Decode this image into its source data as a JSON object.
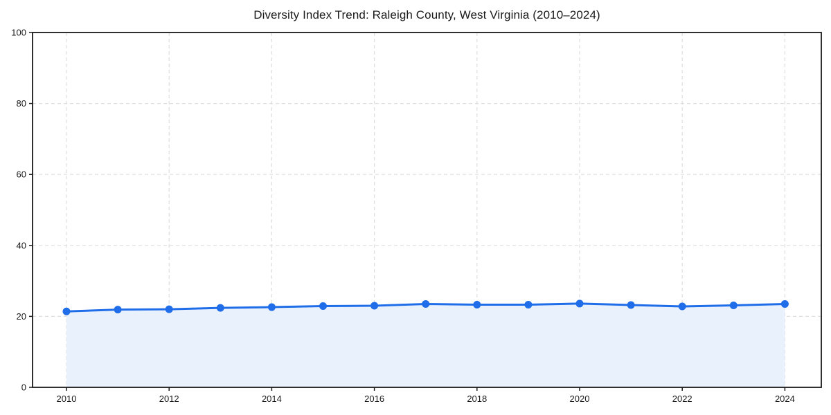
{
  "chart_data": {
    "type": "line",
    "title": "Diversity Index Trend: Raleigh County, West Virginia (2010–2024)",
    "x": [
      2010,
      2011,
      2012,
      2013,
      2014,
      2015,
      2016,
      2017,
      2018,
      2019,
      2020,
      2021,
      2022,
      2023,
      2024
    ],
    "series": [
      {
        "name": "Diversity Index",
        "values": [
          21.4,
          21.9,
          22.0,
          22.4,
          22.6,
          22.9,
          23.0,
          23.5,
          23.3,
          23.3,
          23.6,
          23.2,
          22.8,
          23.1,
          23.5
        ]
      }
    ],
    "xlabel": "",
    "ylabel": "",
    "xlim": [
      2009.3,
      2024.7
    ],
    "ylim": [
      0,
      100
    ],
    "xticks": [
      2010,
      2012,
      2014,
      2016,
      2018,
      2020,
      2022,
      2024
    ],
    "yticks": [
      0,
      20,
      40,
      60,
      80,
      100
    ],
    "grid": true,
    "grid_style": "dashed",
    "legend_position": "none",
    "marker": "circle",
    "area_fill": true,
    "colors": {
      "line": "#1f6de8",
      "marker": "#1f6de8",
      "area_fill": "#e9f1fd",
      "grid": "#dedede",
      "axis": "#1a1a1a",
      "text": "#1a1a1a",
      "background": "#ffffff"
    }
  }
}
